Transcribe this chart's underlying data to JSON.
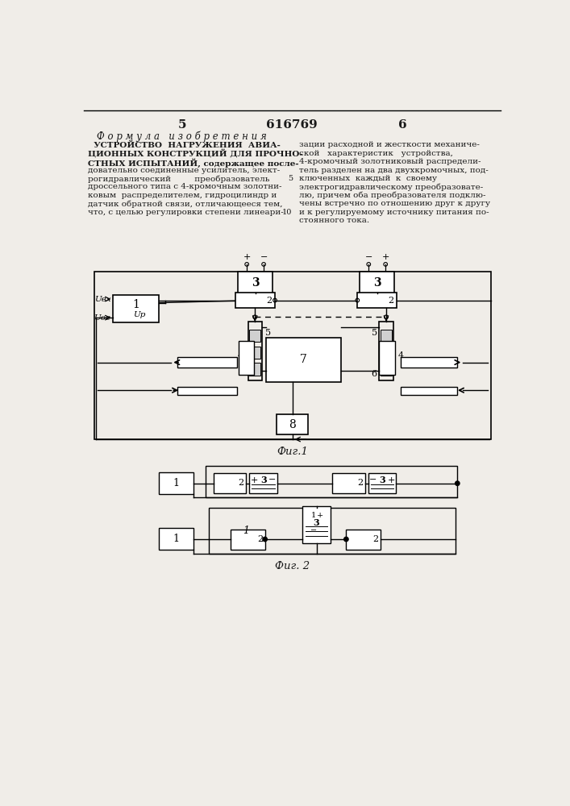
{
  "page_num_left": "5",
  "page_num_center": "616769",
  "page_num_right": "6",
  "formula_title": "Ф о р м у л а   и з о б р е т е н и я",
  "fig1_label": "Фиг.1",
  "fig2_label": "Фиг. 2",
  "bg_color": "#f0ede8",
  "line_color": "#1a1a1a",
  "text_color": "#1a1a1a",
  "left_lines": [
    [
      "  УСТРОЙСТВО  НАГРУЖЕНИЯ  АВИА-",
      true
    ],
    [
      "ЦИОННЫХ КОНСТРУКЦИЙ ДЛЯ ПРОЧНО-",
      true
    ],
    [
      "СТНЫХ ИСПЫТАНИЙ, содержащее после-",
      true
    ],
    [
      "довательно соединенные усилитель, элект-",
      false
    ],
    [
      "рогидравлический         преобразователь",
      false
    ],
    [
      "дроссельного типа с 4-кромочным золотни-",
      false
    ],
    [
      "ковым  распределителем, гидроцилиндр и",
      false
    ],
    [
      "датчик обратной связи, отличающееся тем,",
      false
    ],
    [
      "что, с целью регулировки степени линеари-",
      false
    ]
  ],
  "right_lines": [
    "зации расходной и жесткости механиче-",
    "ской   характеристик   устройства,",
    "4-кромочный золотниковый распредели-",
    "тель разделен на два двухкромочных, под-",
    "ключенных  каждый  к  своему",
    "электрогидравлическому преобразовате-",
    "лю, причем оба преобразователя подклю-",
    "чены встречно по отношению друг к другу",
    "и к регулируемому источнику питания по-",
    "стоянного тока."
  ]
}
